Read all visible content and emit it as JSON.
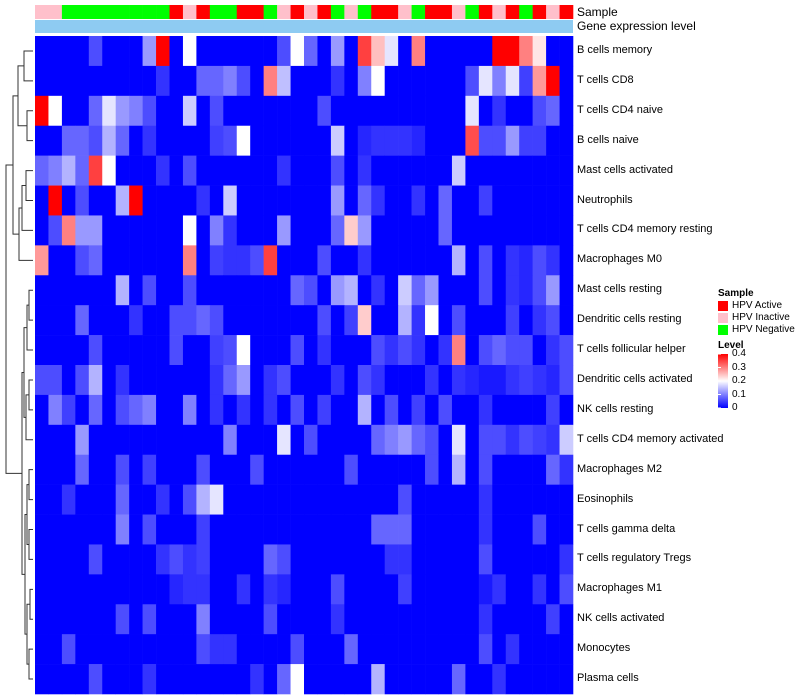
{
  "chart_data": {
    "type": "heatmap",
    "title": "",
    "annotation_labels": [
      "Sample",
      "Gene expression level"
    ],
    "sample_annotation": [
      "I",
      "I",
      "N",
      "N",
      "N",
      "N",
      "N",
      "N",
      "N",
      "N",
      "A",
      "I",
      "A",
      "N",
      "N",
      "A",
      "A",
      "N",
      "I",
      "A",
      "I",
      "A",
      "N",
      "I",
      "N",
      "A",
      "A",
      "I",
      "N",
      "A",
      "A",
      "I",
      "N",
      "A",
      "I",
      "A",
      "N",
      "A",
      "I",
      "A"
    ],
    "gene_expression_level_color": "#8ecbf2",
    "rows": [
      "B cells memory",
      "T cells CD8",
      "T cells CD4 naive",
      "B cells naive",
      "Mast cells activated",
      "Neutrophils",
      "T cells CD4 memory resting",
      "Macrophages M0",
      "Mast cells resting",
      "Dendritic cells resting",
      "T cells follicular helper",
      "Dendritic cells activated",
      "NK cells resting",
      "T cells CD4 memory activated",
      "Macrophages M2",
      "Eosinophils",
      "T cells gamma delta",
      "T cells regulatory  Tregs",
      "Macrophages M1",
      "NK cells activated",
      "Monocytes",
      "Plasma cells"
    ],
    "values": [
      [
        0,
        0,
        0,
        0,
        0.06,
        0,
        0,
        0,
        0.12,
        0.4,
        0,
        0.2,
        0,
        0,
        0,
        0,
        0,
        0,
        0.06,
        0.2,
        0.08,
        0,
        0.12,
        0,
        0.35,
        0.25,
        0.18,
        0,
        0.3,
        0,
        0,
        0,
        0,
        0,
        0.4,
        0.4,
        0.3,
        0.22,
        0,
        0
      ],
      [
        0,
        0,
        0,
        0,
        0,
        0,
        0,
        0,
        0,
        0.04,
        0,
        0,
        0.08,
        0.08,
        0.1,
        0.06,
        0,
        0.3,
        0.15,
        0,
        0,
        0,
        0.04,
        0,
        0.1,
        0.2,
        0,
        0,
        0,
        0,
        0,
        0,
        0.06,
        0.18,
        0.1,
        0.18,
        0.05,
        0.28,
        0.4,
        0
      ],
      [
        0.4,
        0.2,
        0,
        0,
        0.08,
        0.18,
        0.12,
        0.1,
        0.06,
        0,
        0,
        0.16,
        0,
        0.06,
        0,
        0,
        0,
        0,
        0,
        0,
        0,
        0.06,
        0,
        0,
        0,
        0,
        0,
        0,
        0,
        0,
        0,
        0,
        0.18,
        0,
        0.04,
        0,
        0,
        0.06,
        0.08,
        0
      ],
      [
        0,
        0,
        0.08,
        0.08,
        0.06,
        0.14,
        0.08,
        0,
        0.04,
        0,
        0,
        0,
        0,
        0.05,
        0.06,
        0.2,
        0,
        0,
        0,
        0,
        0,
        0,
        0.16,
        0,
        0.03,
        0.04,
        0.04,
        0.04,
        0.03,
        0,
        0,
        0,
        0.34,
        0.06,
        0.06,
        0.12,
        0.05,
        0.05,
        0,
        0
      ],
      [
        0.08,
        0.1,
        0.14,
        0.08,
        0.35,
        0.2,
        0,
        0,
        0,
        0.04,
        0,
        0.06,
        0,
        0,
        0,
        0,
        0,
        0,
        0.04,
        0,
        0,
        0,
        0.06,
        0,
        0.04,
        0,
        0,
        0,
        0,
        0,
        0,
        0.16,
        0,
        0,
        0,
        0,
        0,
        0,
        0,
        0
      ],
      [
        0,
        0.4,
        0,
        0.06,
        0,
        0,
        0.14,
        0.4,
        0,
        0,
        0,
        0,
        0.04,
        0,
        0.16,
        0,
        0,
        0,
        0,
        0,
        0,
        0,
        0.12,
        0,
        0.08,
        0.04,
        0,
        0,
        0.04,
        0,
        0.08,
        0,
        0,
        0.05,
        0,
        0,
        0,
        0,
        0,
        0
      ],
      [
        0,
        0.06,
        0.3,
        0.12,
        0.12,
        0,
        0,
        0,
        0,
        0,
        0,
        0.2,
        0,
        0.1,
        0.04,
        0,
        0,
        0,
        0.12,
        0,
        0,
        0,
        0.08,
        0.24,
        0.12,
        0,
        0,
        0,
        0,
        0,
        0.08,
        0,
        0,
        0,
        0,
        0,
        0,
        0,
        0,
        0
      ],
      [
        0.28,
        0,
        0,
        0.06,
        0.08,
        0,
        0,
        0,
        0,
        0,
        0,
        0.3,
        0,
        0.05,
        0.04,
        0.04,
        0.06,
        0.35,
        0,
        0,
        0,
        0.06,
        0,
        0,
        0.04,
        0,
        0,
        0,
        0,
        0,
        0,
        0.14,
        0,
        0.06,
        0,
        0.04,
        0.03,
        0.06,
        0.04,
        0
      ],
      [
        0,
        0,
        0,
        0,
        0,
        0,
        0.14,
        0,
        0.06,
        0,
        0,
        0.06,
        0,
        0,
        0,
        0,
        0,
        0,
        0,
        0.08,
        0.06,
        0,
        0.12,
        0.14,
        0,
        0.04,
        0,
        0.16,
        0.08,
        0.12,
        0,
        0,
        0,
        0.06,
        0,
        0.04,
        0.03,
        0.06,
        0.12,
        0
      ],
      [
        0,
        0,
        0,
        0.08,
        0,
        0,
        0,
        0.04,
        0,
        0,
        0.06,
        0.06,
        0.08,
        0.06,
        0,
        0,
        0,
        0,
        0,
        0,
        0,
        0.06,
        0,
        0.05,
        0.24,
        0,
        0,
        0.14,
        0.04,
        0.2,
        0,
        0.06,
        0,
        0,
        0,
        0.05,
        0,
        0.04,
        0.06,
        0
      ],
      [
        0,
        0,
        0,
        0,
        0.06,
        0,
        0,
        0,
        0,
        0,
        0.06,
        0,
        0,
        0.05,
        0.06,
        0.2,
        0,
        0,
        0,
        0.06,
        0,
        0.04,
        0,
        0,
        0,
        0.06,
        0.04,
        0.06,
        0.04,
        0,
        0.04,
        0.3,
        0,
        0.06,
        0.08,
        0.06,
        0.06,
        0,
        0.04,
        0.06
      ],
      [
        0.06,
        0.06,
        0,
        0.06,
        0.14,
        0,
        0.04,
        0,
        0,
        0,
        0,
        0,
        0,
        0.04,
        0.08,
        0.12,
        0,
        0.04,
        0.06,
        0,
        0,
        0,
        0.04,
        0,
        0.06,
        0.04,
        0,
        0,
        0,
        0.04,
        0,
        0.04,
        0.03,
        0.02,
        0.02,
        0.04,
        0.05,
        0.04,
        0.03,
        0.06
      ],
      [
        0,
        0.1,
        0.05,
        0,
        0.08,
        0,
        0.06,
        0.08,
        0.1,
        0,
        0,
        0.1,
        0,
        0.04,
        0,
        0.04,
        0,
        0.04,
        0,
        0.06,
        0,
        0.05,
        0,
        0,
        0.14,
        0,
        0.06,
        0,
        0.05,
        0,
        0.06,
        0,
        0,
        0.04,
        0,
        0,
        0,
        0,
        0.05,
        0
      ],
      [
        0,
        0,
        0,
        0.12,
        0,
        0,
        0,
        0,
        0,
        0,
        0,
        0,
        0,
        0,
        0.1,
        0,
        0,
        0,
        0.18,
        0,
        0.06,
        0,
        0,
        0,
        0,
        0.08,
        0.1,
        0.12,
        0.08,
        0.06,
        0,
        0.18,
        0,
        0.06,
        0.06,
        0.04,
        0.06,
        0.05,
        0.04,
        0.16
      ],
      [
        0,
        0,
        0,
        0.08,
        0,
        0,
        0.06,
        0,
        0.05,
        0,
        0,
        0,
        0.06,
        0,
        0,
        0,
        0.06,
        0,
        0,
        0,
        0,
        0,
        0,
        0.06,
        0,
        0,
        0,
        0,
        0,
        0.06,
        0,
        0.14,
        0,
        0.06,
        0,
        0,
        0,
        0,
        0.08,
        0.04
      ],
      [
        0,
        0,
        0.04,
        0,
        0,
        0,
        0.08,
        0,
        0,
        0.04,
        0,
        0.06,
        0.14,
        0.18,
        0,
        0,
        0,
        0,
        0,
        0,
        0,
        0,
        0,
        0,
        0,
        0,
        0,
        0.06,
        0,
        0,
        0,
        0,
        0,
        0.04,
        0,
        0,
        0,
        0,
        0,
        0
      ],
      [
        0,
        0,
        0,
        0,
        0,
        0,
        0.1,
        0,
        0.06,
        0,
        0,
        0,
        0.05,
        0,
        0,
        0,
        0,
        0,
        0,
        0,
        0,
        0,
        0,
        0,
        0,
        0.08,
        0.08,
        0.08,
        0,
        0,
        0,
        0,
        0,
        0.04,
        0,
        0,
        0,
        0.06,
        0,
        0
      ],
      [
        0,
        0,
        0,
        0,
        0.06,
        0,
        0,
        0,
        0,
        0.04,
        0.06,
        0.04,
        0.05,
        0,
        0,
        0,
        0,
        0.08,
        0.06,
        0,
        0,
        0,
        0,
        0,
        0,
        0,
        0.04,
        0.04,
        0,
        0,
        0,
        0,
        0,
        0.06,
        0,
        0,
        0,
        0,
        0,
        0.04
      ],
      [
        0,
        0,
        0,
        0,
        0,
        0,
        0,
        0,
        0,
        0,
        0.03,
        0.04,
        0.04,
        0,
        0,
        0.04,
        0,
        0.04,
        0.03,
        0,
        0,
        0,
        0.06,
        0,
        0,
        0,
        0,
        0.05,
        0,
        0,
        0,
        0,
        0,
        0.02,
        0.04,
        0,
        0,
        0.04,
        0,
        0.06
      ],
      [
        0,
        0,
        0,
        0,
        0,
        0,
        0.06,
        0,
        0.06,
        0,
        0,
        0,
        0.1,
        0,
        0,
        0,
        0,
        0.06,
        0,
        0,
        0,
        0,
        0.04,
        0,
        0,
        0,
        0,
        0,
        0,
        0,
        0,
        0,
        0,
        0.04,
        0,
        0,
        0,
        0,
        0.05,
        0
      ],
      [
        0,
        0,
        0.06,
        0,
        0,
        0,
        0,
        0,
        0,
        0,
        0,
        0,
        0.06,
        0.04,
        0.04,
        0,
        0,
        0,
        0,
        0.06,
        0,
        0,
        0,
        0.08,
        0,
        0,
        0,
        0,
        0,
        0,
        0,
        0,
        0,
        0.06,
        0,
        0.04,
        0,
        0,
        0,
        0
      ],
      [
        0,
        0,
        0,
        0,
        0.06,
        0,
        0,
        0,
        0.04,
        0,
        0,
        0,
        0,
        0,
        0,
        0,
        0.04,
        0,
        0.08,
        0.2,
        0,
        0,
        0,
        0,
        0,
        0.14,
        0,
        0,
        0,
        0,
        0,
        0.08,
        0,
        0,
        0.04,
        0,
        0,
        0,
        0,
        0
      ]
    ],
    "legend_sample": {
      "title": "Sample",
      "items": [
        {
          "label": "HPV Active",
          "color": "#ff0000"
        },
        {
          "label": "HPV Inactive",
          "color": "#ffc0cb"
        },
        {
          "label": "HPV Negative",
          "color": "#00ff00"
        }
      ]
    },
    "legend_level": {
      "title": "Level",
      "ticks": [
        "0.4",
        "0.3",
        "0.2",
        "0.1",
        "0"
      ],
      "range": [
        0,
        0.4
      ],
      "low_color": "#0000ff",
      "mid_color": "#ffffff",
      "high_color": "#ff0000"
    },
    "dendrogram": "hierarchical clustering of rows"
  }
}
